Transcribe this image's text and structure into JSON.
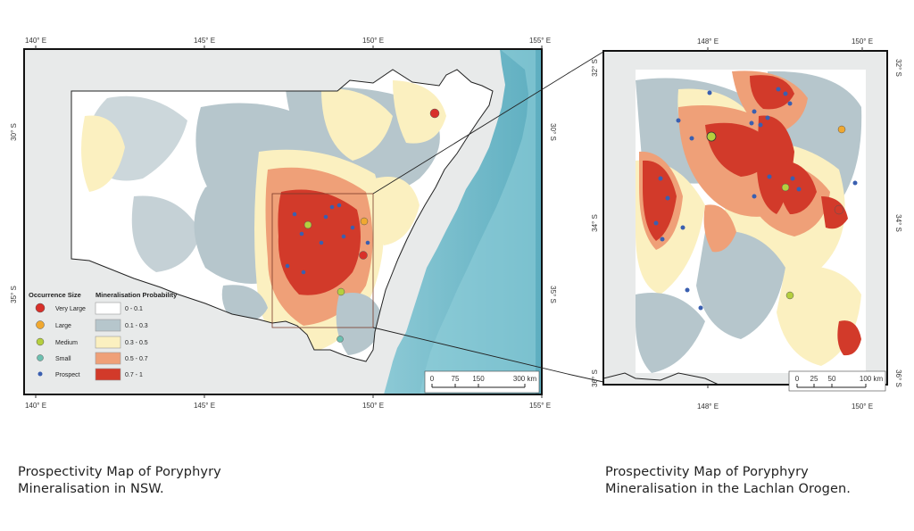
{
  "nsw_map": {
    "lon_ticks": [
      "140° E",
      "145° E",
      "150° E",
      "155° E"
    ],
    "lat_ticks": [
      "30° S",
      "35° S"
    ],
    "legend": {
      "occurrence_title": "Occurrence Size",
      "probability_title": "Mineralisation Probability",
      "occurrence_items": [
        {
          "label": "Very Large",
          "color": "#d8302a"
        },
        {
          "label": "Large",
          "color": "#f0a830"
        },
        {
          "label": "Medium",
          "color": "#b5cf3e"
        },
        {
          "label": "Small",
          "color": "#6cc0b0"
        },
        {
          "label": "Prospect",
          "color": "#3a5fb0"
        }
      ],
      "probability_items": [
        {
          "label": "0 - 0.1",
          "color": "#ffffff"
        },
        {
          "label": "0.1 - 0.3",
          "color": "#b6c6cc"
        },
        {
          "label": "0.3 - 0.5",
          "color": "#fbf0c0"
        },
        {
          "label": "0.5 - 0.7",
          "color": "#efa078"
        },
        {
          "label": "0.7 - 1",
          "color": "#d23a2a"
        }
      ]
    },
    "scale_labels": [
      "0",
      "75",
      "150",
      "300 km"
    ]
  },
  "lachlan_map": {
    "lon_ticks": [
      "148° E",
      "150° E"
    ],
    "lat_ticks": [
      "32° S",
      "34° S",
      "36° S"
    ],
    "scale_labels": [
      "0",
      "25",
      "50",
      "100 km"
    ]
  },
  "captions": {
    "left": [
      "Prospectivity Map of Poryphyry",
      "Mineralisation in NSW."
    ],
    "right": [
      "Prospectivity Map of Poryphyry",
      "Mineralisation in the Lachlan Orogen."
    ]
  },
  "colors": {
    "ocean": "#6fb6c6",
    "land": "#e9ebeb",
    "low": "#ffffff",
    "p1": "#b6c6cc",
    "p2": "#fbf0c0",
    "p3": "#efa078",
    "p4": "#d23a2a"
  }
}
